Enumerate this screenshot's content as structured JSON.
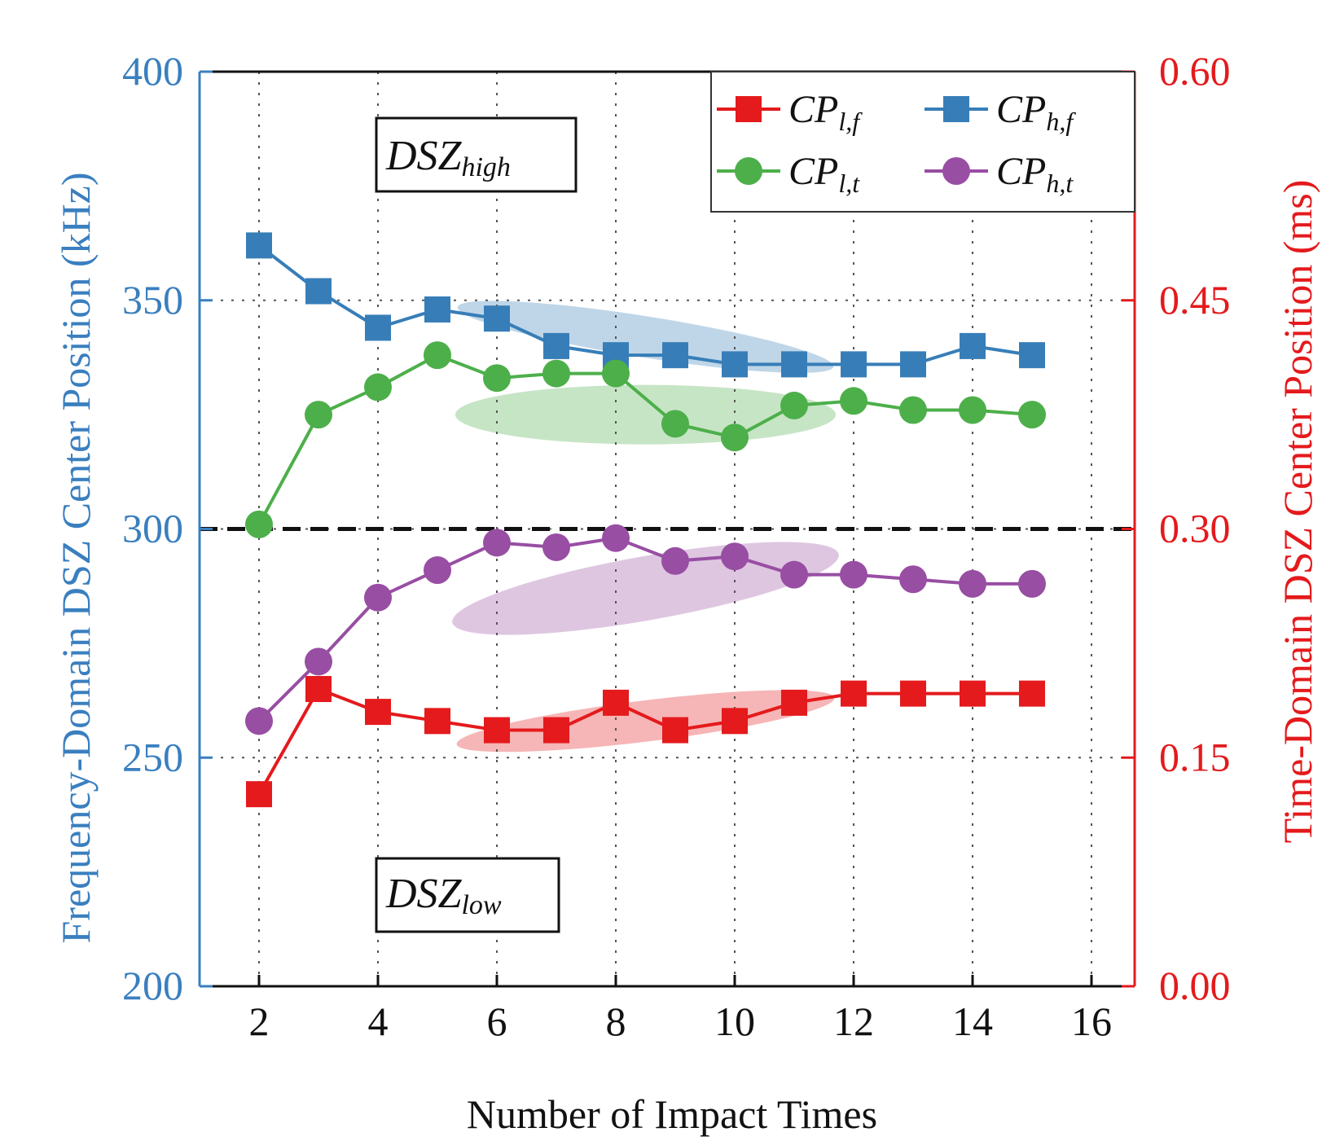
{
  "chart_data": {
    "type": "line",
    "x": [
      2,
      3,
      4,
      5,
      6,
      7,
      8,
      9,
      10,
      11,
      12,
      13,
      14,
      15
    ],
    "xlabel": "Number of Impact Times",
    "ylabel": "Frequency-Domain DSZ Center Position (kHz)",
    "y2label": "Time-Domain DSZ Center Position (ms)",
    "xlim": [
      1,
      17
    ],
    "ylim": [
      200,
      400
    ],
    "y2lim": [
      0.0,
      0.6
    ],
    "xticks": [
      "2",
      "4",
      "6",
      "8",
      "10",
      "12",
      "14",
      "16"
    ],
    "xtick_values": [
      2,
      4,
      6,
      8,
      10,
      12,
      14,
      16
    ],
    "yticks": [
      "200",
      "250",
      "300",
      "350",
      "400"
    ],
    "ytick_values": [
      200,
      250,
      300,
      350,
      400
    ],
    "y2ticks": [
      "0.00",
      "0.15",
      "0.30",
      "0.45",
      "0.60"
    ],
    "y2tick_values": [
      0.0,
      0.15,
      0.3,
      0.45,
      0.6
    ],
    "grid": true,
    "threshold_line": 300,
    "series": [
      {
        "name": "CP",
        "sub": "l,f",
        "color": "#e41a1c",
        "marker": "square",
        "values": [
          242,
          265,
          260,
          258,
          256,
          256,
          262,
          256,
          258,
          262,
          264,
          264,
          264,
          264
        ],
        "highlight": {
          "x_center": 8.5,
          "y_center": 258,
          "x_radius": 3.2,
          "y_radius": 4.5,
          "tilt": -7
        }
      },
      {
        "name": "CP",
        "sub": "h,f",
        "color": "#377eb8",
        "marker": "square",
        "values": [
          362,
          352,
          344,
          348,
          346,
          340,
          338,
          338,
          336,
          336,
          336,
          336,
          340,
          338
        ],
        "highlight": {
          "x_center": 8.5,
          "y_center": 342,
          "x_radius": 3.2,
          "y_radius": 4.5,
          "tilt": 9
        }
      },
      {
        "name": "CP",
        "sub": "l,t",
        "color": "#4daf4a",
        "marker": "circle",
        "values": [
          301,
          325,
          331,
          338,
          333,
          334,
          334,
          323,
          320,
          327,
          328,
          326,
          326,
          325
        ],
        "highlight": {
          "x_center": 8.5,
          "y_center": 325,
          "x_radius": 3.2,
          "y_radius": 6.5,
          "tilt": 0
        }
      },
      {
        "name": "CP",
        "sub": "h,t",
        "color": "#984ea3",
        "marker": "circle",
        "values": [
          258,
          271,
          285,
          291,
          297,
          296,
          298,
          293,
          294,
          290,
          290,
          289,
          288,
          288
        ],
        "highlight": {
          "x_center": 8.5,
          "y_center": 287,
          "x_radius": 3.3,
          "y_radius": 7,
          "tilt": -10
        }
      }
    ],
    "zones": [
      {
        "main": "DSZ",
        "sub": "high"
      },
      {
        "main": "DSZ",
        "sub": "low"
      }
    ],
    "axis_colors": {
      "left": "#3a7fbf",
      "right": "#e41a1c"
    },
    "legend_position": "top-right"
  }
}
